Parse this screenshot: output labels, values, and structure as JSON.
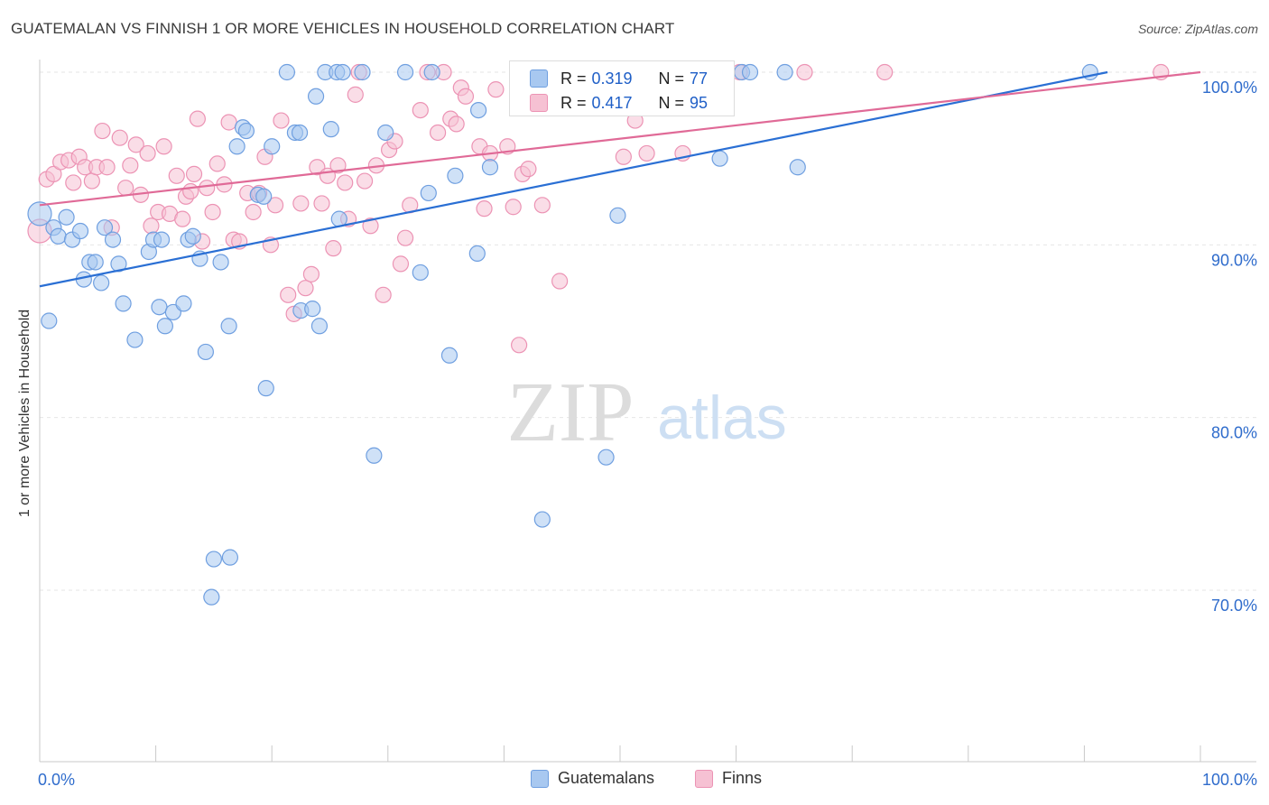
{
  "title": "GUATEMALAN VS FINNISH 1 OR MORE VEHICLES IN HOUSEHOLD CORRELATION CHART",
  "source": "Source: ZipAtlas.com",
  "watermark": {
    "zip": "ZIP",
    "atlas": "atlas"
  },
  "stats": [
    {
      "r_label": "R =",
      "r": "0.319",
      "n_label": "N =",
      "n": "77"
    },
    {
      "r_label": "R =",
      "r": "0.417",
      "n_label": "N =",
      "n": "95"
    }
  ],
  "chart_data": {
    "type": "scatter",
    "title": "GUATEMALAN VS FINNISH 1 OR MORE VEHICLES IN HOUSEHOLD CORRELATION CHART",
    "xlabel": "",
    "ylabel": "1 or more Vehicles in Household",
    "xlim": [
      0,
      105
    ],
    "ylim": [
      60.5,
      101
    ],
    "x_tick_labels": [
      {
        "value": 0,
        "label": "0.0%"
      },
      {
        "value": 100,
        "label": "100.0%"
      }
    ],
    "y_tick_labels": [
      {
        "value": 100,
        "label": "100.0%"
      },
      {
        "value": 90,
        "label": "90.0%"
      },
      {
        "value": 80,
        "label": "80.0%"
      },
      {
        "value": 70,
        "label": "70.0%"
      }
    ],
    "x_minor_ticks": [
      10,
      20,
      30,
      40,
      50,
      60,
      70,
      80,
      90,
      100
    ],
    "grid": true,
    "legend_position": "bottom",
    "colors": {
      "guatemalans_fill": "#a8c8f0",
      "guatemalans_stroke": "#6f9fe0",
      "guatemalans_line": "#2a6fd4",
      "finns_fill": "#f6c1d3",
      "finns_stroke": "#ec93b4",
      "finns_line": "#e06a97",
      "tick_text": "#2f6ccc",
      "grid": "#e6e6e6",
      "axis": "#c9c9c9"
    },
    "series": [
      {
        "name": "Guatemalans",
        "r": 0.319,
        "n": 77,
        "trend": {
          "x": [
            0,
            92
          ],
          "y": [
            87.6,
            100
          ]
        },
        "points": [
          [
            0,
            91.8
          ],
          [
            0.8,
            85.6
          ],
          [
            1.2,
            91
          ],
          [
            1.6,
            90.5
          ],
          [
            2.3,
            91.6
          ],
          [
            2.8,
            90.3
          ],
          [
            3.5,
            90.8
          ],
          [
            3.8,
            88
          ],
          [
            4.3,
            89
          ],
          [
            4.8,
            89
          ],
          [
            5.3,
            87.8
          ],
          [
            5.6,
            91
          ],
          [
            6.3,
            90.3
          ],
          [
            6.8,
            88.9
          ],
          [
            7.2,
            86.6
          ],
          [
            8.2,
            84.5
          ],
          [
            9.4,
            89.6
          ],
          [
            9.8,
            90.3
          ],
          [
            10.3,
            86.4
          ],
          [
            10.5,
            90.3
          ],
          [
            10.8,
            85.3
          ],
          [
            11.5,
            86.1
          ],
          [
            12.4,
            86.6
          ],
          [
            12.8,
            90.3
          ],
          [
            13.2,
            90.5
          ],
          [
            13.8,
            89.2
          ],
          [
            14.3,
            83.8
          ],
          [
            14.8,
            69.6
          ],
          [
            15.0,
            71.8
          ],
          [
            15.6,
            89
          ],
          [
            16.3,
            85.3
          ],
          [
            16.4,
            71.9
          ],
          [
            17.0,
            95.7
          ],
          [
            17.5,
            96.8
          ],
          [
            17.8,
            96.6
          ],
          [
            18.8,
            92.9
          ],
          [
            19.3,
            92.8
          ],
          [
            19.5,
            81.7
          ],
          [
            20.0,
            95.7
          ],
          [
            21.3,
            100
          ],
          [
            22.0,
            96.5
          ],
          [
            22.4,
            96.5
          ],
          [
            22.5,
            86.2
          ],
          [
            23.5,
            86.3
          ],
          [
            23.8,
            98.6
          ],
          [
            24.1,
            85.3
          ],
          [
            24.6,
            100
          ],
          [
            25.1,
            96.7
          ],
          [
            25.6,
            100
          ],
          [
            25.8,
            91.5
          ],
          [
            26.1,
            100
          ],
          [
            27.8,
            100
          ],
          [
            28.8,
            77.8
          ],
          [
            29.8,
            96.5
          ],
          [
            31.5,
            100
          ],
          [
            32.8,
            88.4
          ],
          [
            33.5,
            93.0
          ],
          [
            33.8,
            100
          ],
          [
            35.3,
            83.6
          ],
          [
            35.8,
            94.0
          ],
          [
            37.7,
            89.5
          ],
          [
            37.8,
            97.8
          ],
          [
            38.8,
            94.5
          ],
          [
            42.2,
            100
          ],
          [
            43.3,
            74.1
          ],
          [
            43.8,
            100
          ],
          [
            48.8,
            77.7
          ],
          [
            49.8,
            91.7
          ],
          [
            54.3,
            100
          ],
          [
            56.8,
            100
          ],
          [
            58.3,
            100
          ],
          [
            58.6,
            95
          ],
          [
            60.5,
            100
          ],
          [
            61.2,
            100
          ],
          [
            64.2,
            100
          ],
          [
            65.3,
            94.5
          ],
          [
            90.5,
            100
          ]
        ]
      },
      {
        "name": "Finns",
        "r": 0.417,
        "n": 95,
        "trend": {
          "x": [
            0,
            100
          ],
          "y": [
            92.3,
            100
          ]
        },
        "points": [
          [
            0,
            90.8
          ],
          [
            0.6,
            93.8
          ],
          [
            1.2,
            94.1
          ],
          [
            1.8,
            94.8
          ],
          [
            2.5,
            94.9
          ],
          [
            2.9,
            93.6
          ],
          [
            3.4,
            95.1
          ],
          [
            3.9,
            94.5
          ],
          [
            4.5,
            93.7
          ],
          [
            4.9,
            94.5
          ],
          [
            5.4,
            96.6
          ],
          [
            5.8,
            94.5
          ],
          [
            6.2,
            91
          ],
          [
            6.9,
            96.2
          ],
          [
            7.4,
            93.3
          ],
          [
            7.8,
            94.6
          ],
          [
            8.3,
            95.8
          ],
          [
            8.7,
            92.9
          ],
          [
            9.3,
            95.3
          ],
          [
            9.6,
            91.1
          ],
          [
            10.2,
            91.9
          ],
          [
            10.7,
            95.7
          ],
          [
            11.2,
            91.8
          ],
          [
            11.8,
            94
          ],
          [
            12.3,
            91.5
          ],
          [
            12.6,
            92.8
          ],
          [
            13.0,
            93.1
          ],
          [
            13.3,
            94.1
          ],
          [
            13.6,
            97.3
          ],
          [
            14.0,
            90.2
          ],
          [
            14.4,
            93.3
          ],
          [
            14.9,
            91.9
          ],
          [
            15.3,
            94.7
          ],
          [
            15.9,
            93.5
          ],
          [
            16.3,
            97.1
          ],
          [
            16.7,
            90.3
          ],
          [
            17.2,
            90.2
          ],
          [
            17.9,
            93
          ],
          [
            18.4,
            91.9
          ],
          [
            18.9,
            93
          ],
          [
            19.4,
            95.1
          ],
          [
            19.9,
            90
          ],
          [
            20.3,
            92.3
          ],
          [
            20.8,
            97.2
          ],
          [
            21.4,
            87.1
          ],
          [
            21.9,
            86
          ],
          [
            22.5,
            92.4
          ],
          [
            22.9,
            87.5
          ],
          [
            23.4,
            88.3
          ],
          [
            23.9,
            94.5
          ],
          [
            24.3,
            92.4
          ],
          [
            24.8,
            94
          ],
          [
            25.3,
            89.8
          ],
          [
            25.7,
            94.6
          ],
          [
            26.3,
            93.6
          ],
          [
            26.6,
            91.5
          ],
          [
            27.2,
            98.7
          ],
          [
            27.5,
            100
          ],
          [
            28.0,
            93.7
          ],
          [
            28.5,
            91.1
          ],
          [
            29.0,
            94.6
          ],
          [
            29.6,
            87.1
          ],
          [
            30.1,
            95.5
          ],
          [
            30.6,
            96
          ],
          [
            31.1,
            88.9
          ],
          [
            31.5,
            90.4
          ],
          [
            31.9,
            92.3
          ],
          [
            32.8,
            97.8
          ],
          [
            33.4,
            100
          ],
          [
            34.3,
            96.5
          ],
          [
            34.8,
            100
          ],
          [
            35.4,
            97.3
          ],
          [
            35.9,
            97
          ],
          [
            36.3,
            99.1
          ],
          [
            36.7,
            98.6
          ],
          [
            37.9,
            95.7
          ],
          [
            38.3,
            92.1
          ],
          [
            38.8,
            95.3
          ],
          [
            39.3,
            99
          ],
          [
            40.3,
            95.7
          ],
          [
            40.8,
            92.2
          ],
          [
            41.3,
            84.2
          ],
          [
            41.6,
            94.1
          ],
          [
            42.1,
            94.4
          ],
          [
            43.3,
            92.3
          ],
          [
            44.8,
            87.9
          ],
          [
            46.9,
            100
          ],
          [
            50.3,
            95.1
          ],
          [
            51.3,
            97.2
          ],
          [
            52.3,
            95.3
          ],
          [
            55.4,
            95.3
          ],
          [
            60.3,
            100
          ],
          [
            65.9,
            100
          ],
          [
            72.8,
            100
          ],
          [
            96.6,
            100
          ]
        ]
      }
    ]
  },
  "legend": [
    {
      "label": "Guatemalans"
    },
    {
      "label": "Finns"
    }
  ]
}
